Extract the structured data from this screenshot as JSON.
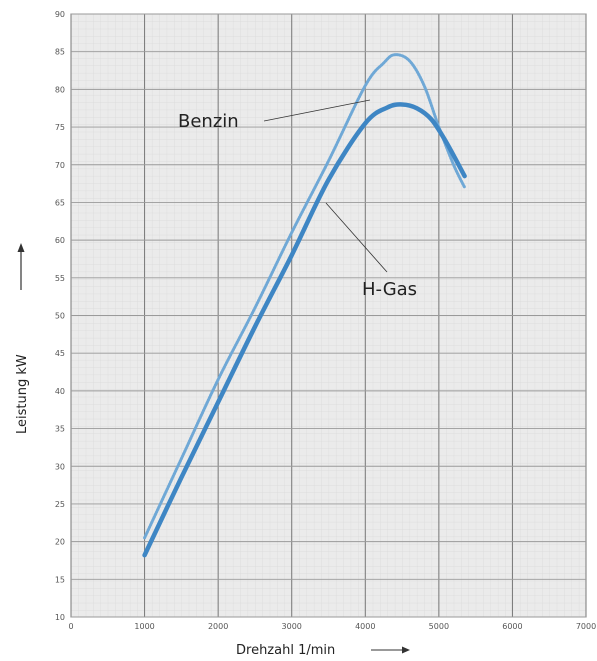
{
  "chart_data": {
    "type": "line",
    "title": "",
    "xlabel": "Drehzahl 1/min",
    "ylabel": "Leistung kW",
    "xlim": [
      0,
      7000
    ],
    "ylim": [
      10,
      90
    ],
    "x_ticks": [
      0,
      1000,
      2000,
      3000,
      4000,
      5000,
      6000,
      7000
    ],
    "x_tick_labels": [
      "0",
      "1000",
      "2000",
      "3000",
      "4000",
      "5000",
      "6000",
      "7000"
    ],
    "y_ticks": [
      10,
      15,
      20,
      25,
      30,
      35,
      40,
      45,
      50,
      55,
      60,
      65,
      70,
      75,
      80,
      85,
      90
    ],
    "y_tick_labels": [
      "10",
      "15",
      "20",
      "25",
      "30",
      "35",
      "40",
      "45",
      "50",
      "55",
      "60",
      "65",
      "70",
      "75",
      "80",
      "85",
      "90"
    ],
    "grid": true,
    "series": [
      {
        "name": "Benzin",
        "color": "#6fa8d6",
        "style": "dotted",
        "x": [
          1000,
          1500,
          2000,
          2500,
          3000,
          3500,
          4000,
          4250,
          4400,
          4600,
          4800,
          5000,
          5200,
          5350
        ],
        "y": [
          20.5,
          31,
          41.5,
          51,
          61,
          70.5,
          80.5,
          83.5,
          84.6,
          83.8,
          80.5,
          75,
          70,
          67
        ]
      },
      {
        "name": "H-Gas",
        "color": "#3e86c4",
        "style": "solid",
        "x": [
          1000,
          1500,
          2000,
          2500,
          3000,
          3500,
          4000,
          4300,
          4500,
          4700,
          4900,
          5100,
          5350
        ],
        "y": [
          18.2,
          28.5,
          38.5,
          48.5,
          58,
          68,
          75.5,
          77.6,
          78,
          77.5,
          76,
          73,
          68.5
        ]
      }
    ],
    "annotations": [
      {
        "text": "Benzin",
        "series": "Benzin"
      },
      {
        "text": "H-Gas",
        "series": "H-Gas"
      }
    ]
  }
}
